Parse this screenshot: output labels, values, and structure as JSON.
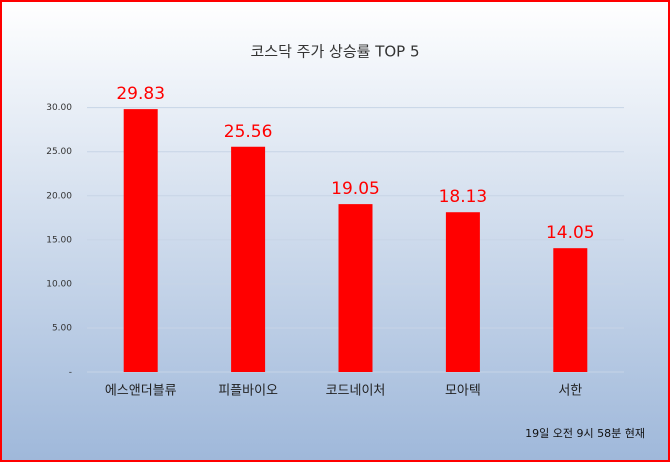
{
  "chart_data": {
    "type": "bar",
    "title": "코스닥 주가 상승률 TOP 5",
    "categories": [
      "에스앤더블류",
      "피플바이오",
      "코드네이처",
      "모아텍",
      "서한"
    ],
    "values": [
      29.83,
      25.56,
      19.05,
      18.13,
      14.05
    ],
    "color": "#ff0000",
    "ylim": [
      0,
      32
    ],
    "yticks": [
      {
        "value": 0,
        "label": "-"
      },
      {
        "value": 5,
        "label": "5.00"
      },
      {
        "value": 10,
        "label": "10.00"
      },
      {
        "value": 15,
        "label": "15.00"
      },
      {
        "value": 20,
        "label": "20.00"
      },
      {
        "value": 25,
        "label": "25.00"
      },
      {
        "value": 30,
        "label": "30.00"
      }
    ],
    "grid": true,
    "annotation": "19일 오전 9시 58분 현재"
  }
}
